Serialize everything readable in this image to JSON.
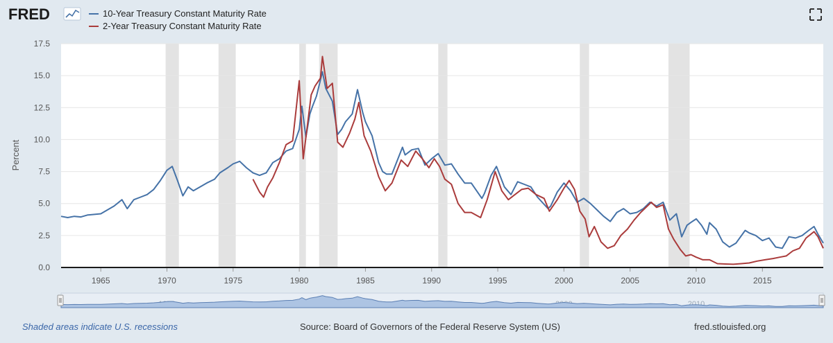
{
  "brand": {
    "logo_text": "FRED",
    "logo_icon": "line-graph-icon"
  },
  "toolbar": {
    "fullscreen_icon": "fullscreen-icon"
  },
  "colors": {
    "background": "#e1e9f0",
    "plot_background": "#ffffff",
    "series_10y": "#4572a7",
    "series_2y": "#aa3b3b",
    "recession": "#e3e3e3",
    "grid": "#e6e6e6",
    "navigator_fill": "#adc4e3",
    "navigator_line": "#5b7fb3"
  },
  "footer": {
    "recessions_note": "Shaded areas indicate U.S. recessions",
    "source": "Source: Board of Governors of the Federal Reserve System (US)",
    "site": "fred.stlouisfed.org"
  },
  "chart_data": {
    "type": "line",
    "title": "",
    "ylabel": "Percent",
    "xlabel": "",
    "xlim": [
      1962.0,
      2019.6
    ],
    "ylim": [
      0,
      17.5
    ],
    "y_ticks": [
      "0.0",
      "2.5",
      "5.0",
      "7.5",
      "10.0",
      "12.5",
      "15.0",
      "17.5"
    ],
    "x_ticks": [
      "1965",
      "1970",
      "1975",
      "1980",
      "1985",
      "1990",
      "1995",
      "2000",
      "2005",
      "2010",
      "2015"
    ],
    "grid": true,
    "legend_position": "top-left",
    "recessions": [
      [
        1969.9,
        1970.9
      ],
      [
        1973.9,
        1975.2
      ],
      [
        1980.0,
        1980.5
      ],
      [
        1981.5,
        1982.9
      ],
      [
        1990.5,
        1991.2
      ],
      [
        2001.2,
        2001.9
      ],
      [
        2007.9,
        2009.5
      ]
    ],
    "navigator_labels": [
      "1970",
      "1980",
      "1990",
      "2000",
      "2010"
    ],
    "series": [
      {
        "name": "10-Year Treasury Constant Maturity Rate",
        "x": [
          1962.0,
          1962.5,
          1963.0,
          1963.5,
          1964.0,
          1965.0,
          1966.0,
          1966.6,
          1967.0,
          1967.5,
          1968.0,
          1968.5,
          1969.0,
          1969.5,
          1970.0,
          1970.4,
          1970.8,
          1971.0,
          1971.2,
          1971.6,
          1972.0,
          1972.5,
          1973.0,
          1973.6,
          1974.0,
          1974.6,
          1975.0,
          1975.5,
          1976.0,
          1976.5,
          1977.0,
          1977.5,
          1978.0,
          1978.5,
          1979.0,
          1979.5,
          1980.0,
          1980.2,
          1980.5,
          1980.8,
          1981.0,
          1981.3,
          1981.75,
          1982.0,
          1982.5,
          1982.9,
          1983.2,
          1983.5,
          1984.0,
          1984.4,
          1984.8,
          1985.0,
          1985.5,
          1986.0,
          1986.3,
          1986.6,
          1987.0,
          1987.8,
          1988.0,
          1988.5,
          1989.0,
          1989.5,
          1990.0,
          1990.5,
          1991.0,
          1991.5,
          1992.0,
          1992.5,
          1993.0,
          1993.8,
          1994.0,
          1994.5,
          1994.9,
          1995.5,
          1996.0,
          1996.5,
          1997.0,
          1997.5,
          1998.0,
          1998.8,
          1999.0,
          1999.5,
          2000.0,
          2000.5,
          2001.0,
          2001.5,
          2002.0,
          2002.5,
          2003.0,
          2003.5,
          2004.0,
          2004.5,
          2005.0,
          2005.5,
          2006.0,
          2006.5,
          2007.0,
          2007.5,
          2008.0,
          2008.5,
          2008.9,
          2009.3,
          2009.7,
          2010.0,
          2010.4,
          2010.8,
          2011.0,
          2011.5,
          2012.0,
          2012.5,
          2013.0,
          2013.7,
          2014.0,
          2014.5,
          2015.0,
          2015.5,
          2016.0,
          2016.5,
          2017.0,
          2017.5,
          2018.0,
          2018.5,
          2018.9,
          2019.2,
          2019.6
        ],
        "values": [
          4.0,
          3.9,
          4.0,
          3.95,
          4.1,
          4.2,
          4.8,
          5.3,
          4.6,
          5.3,
          5.5,
          5.7,
          6.1,
          6.8,
          7.6,
          7.9,
          6.8,
          6.2,
          5.6,
          6.3,
          6.0,
          6.3,
          6.6,
          6.9,
          7.4,
          7.8,
          8.1,
          8.3,
          7.8,
          7.4,
          7.2,
          7.4,
          8.2,
          8.5,
          9.1,
          9.3,
          10.8,
          12.6,
          10.2,
          12.0,
          12.6,
          13.4,
          15.3,
          14.0,
          13.0,
          10.4,
          10.8,
          11.4,
          12.0,
          13.9,
          12.1,
          11.4,
          10.3,
          8.2,
          7.5,
          7.3,
          7.3,
          9.4,
          8.8,
          9.2,
          9.3,
          8.0,
          8.5,
          8.9,
          8.0,
          8.1,
          7.3,
          6.6,
          6.6,
          5.4,
          5.8,
          7.2,
          7.9,
          6.3,
          5.7,
          6.7,
          6.5,
          6.3,
          5.5,
          4.6,
          4.8,
          5.9,
          6.6,
          6.0,
          5.1,
          5.4,
          5.0,
          4.5,
          4.0,
          3.6,
          4.3,
          4.6,
          4.2,
          4.3,
          4.6,
          5.1,
          4.8,
          5.1,
          3.7,
          4.2,
          2.4,
          3.3,
          3.6,
          3.8,
          3.3,
          2.6,
          3.5,
          3.0,
          2.0,
          1.6,
          1.9,
          2.9,
          2.7,
          2.5,
          2.1,
          2.3,
          1.6,
          1.5,
          2.4,
          2.3,
          2.5,
          2.9,
          3.2,
          2.6,
          1.9
        ]
      },
      {
        "name": "2-Year Treasury Constant Maturity Rate",
        "x": [
          1976.5,
          1977.0,
          1977.3,
          1977.6,
          1978.0,
          1978.5,
          1979.0,
          1979.5,
          1980.0,
          1980.3,
          1980.6,
          1980.9,
          1981.2,
          1981.6,
          1981.75,
          1982.1,
          1982.5,
          1982.9,
          1983.3,
          1983.8,
          1984.2,
          1984.5,
          1984.9,
          1985.4,
          1986.0,
          1986.5,
          1987.0,
          1987.7,
          1988.2,
          1988.8,
          1989.3,
          1989.8,
          1990.2,
          1990.6,
          1991.0,
          1991.5,
          1992.0,
          1992.5,
          1993.0,
          1993.7,
          1994.2,
          1994.8,
          1995.3,
          1995.8,
          1996.3,
          1996.8,
          1997.3,
          1997.9,
          1998.5,
          1998.9,
          1999.5,
          2000.0,
          2000.4,
          2000.8,
          2001.2,
          2001.6,
          2001.9,
          2002.3,
          2002.8,
          2003.3,
          2003.8,
          2004.3,
          2004.8,
          2005.3,
          2005.8,
          2006.3,
          2006.6,
          2007.0,
          2007.5,
          2007.9,
          2008.3,
          2008.8,
          2009.2,
          2009.6,
          2010.0,
          2010.5,
          2011.0,
          2011.6,
          2012.2,
          2012.8,
          2013.4,
          2014.0,
          2014.6,
          2015.2,
          2015.8,
          2016.3,
          2016.8,
          2017.3,
          2017.8,
          2018.3,
          2018.9,
          2019.2,
          2019.6
        ],
        "values": [
          6.9,
          5.9,
          5.5,
          6.3,
          7.0,
          8.2,
          9.6,
          9.9,
          14.6,
          8.5,
          11.0,
          13.5,
          14.2,
          14.8,
          16.5,
          14.0,
          14.4,
          9.8,
          9.4,
          10.5,
          11.6,
          12.9,
          10.3,
          9.1,
          7.1,
          6.0,
          6.6,
          8.4,
          7.9,
          9.1,
          8.5,
          7.8,
          8.5,
          7.9,
          6.9,
          6.5,
          5.0,
          4.3,
          4.3,
          3.9,
          5.3,
          7.5,
          6.0,
          5.3,
          5.7,
          6.1,
          6.2,
          5.7,
          5.4,
          4.4,
          5.3,
          6.2,
          6.8,
          6.1,
          4.4,
          3.8,
          2.4,
          3.2,
          2.0,
          1.5,
          1.7,
          2.5,
          3.0,
          3.7,
          4.3,
          4.8,
          5.1,
          4.7,
          4.9,
          3.0,
          2.2,
          1.4,
          0.9,
          1.0,
          0.8,
          0.6,
          0.6,
          0.3,
          0.27,
          0.25,
          0.3,
          0.35,
          0.5,
          0.6,
          0.7,
          0.8,
          0.9,
          1.3,
          1.5,
          2.3,
          2.8,
          2.4,
          1.5
        ]
      }
    ]
  }
}
